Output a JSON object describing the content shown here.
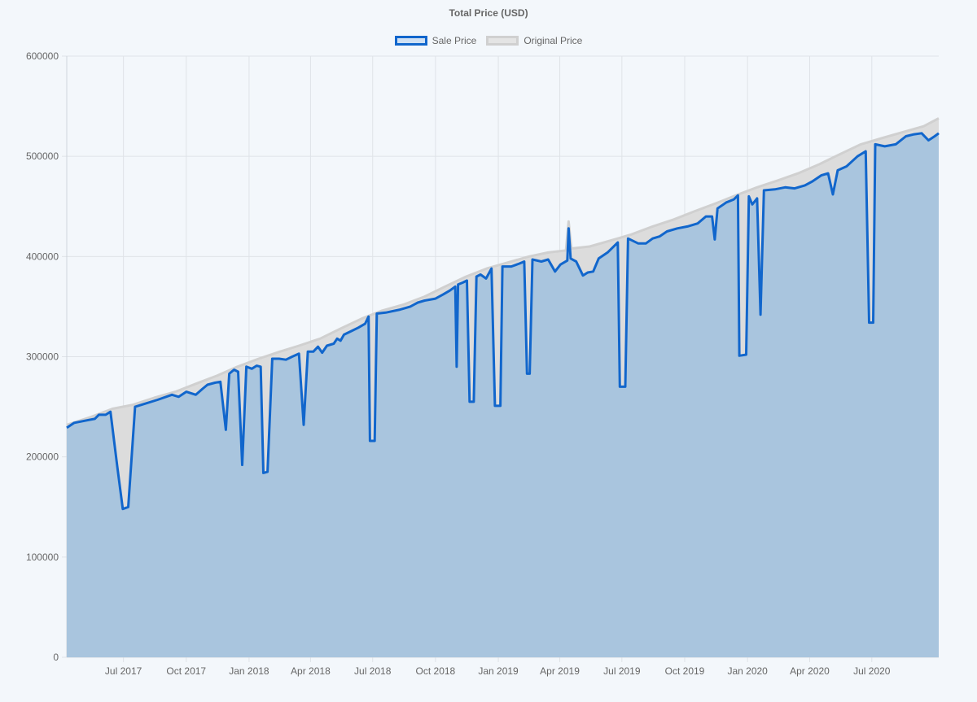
{
  "chart_data": {
    "type": "area",
    "title": "Total Price (USD)",
    "xlabel": "",
    "ylabel": "",
    "ylim": [
      0,
      600000
    ],
    "y_ticks": [
      0,
      100000,
      200000,
      300000,
      400000,
      500000,
      600000
    ],
    "x_range": [
      "2017-04-09",
      "2020-10-07"
    ],
    "x_ticks": [
      {
        "date": "2017-07-01",
        "label": "Jul 2017"
      },
      {
        "date": "2017-10-01",
        "label": "Oct 2017"
      },
      {
        "date": "2018-01-01",
        "label": "Jan 2018"
      },
      {
        "date": "2018-04-01",
        "label": "Apr 2018"
      },
      {
        "date": "2018-07-01",
        "label": "Jul 2018"
      },
      {
        "date": "2018-10-01",
        "label": "Oct 2018"
      },
      {
        "date": "2019-01-01",
        "label": "Jan 2019"
      },
      {
        "date": "2019-04-01",
        "label": "Apr 2019"
      },
      {
        "date": "2019-07-01",
        "label": "Jul 2019"
      },
      {
        "date": "2019-10-01",
        "label": "Oct 2019"
      },
      {
        "date": "2020-01-01",
        "label": "Jan 2020"
      },
      {
        "date": "2020-04-01",
        "label": "Apr 2020"
      },
      {
        "date": "2020-07-01",
        "label": "Jul 2020"
      }
    ],
    "grid": true,
    "legend_position": "top",
    "colors": {
      "sale_line": "#1166cc",
      "sale_fill": "#a9c5de",
      "original_line": "#d0d0d0",
      "original_fill": "#dcdcdc",
      "grid": "#dfe3e8"
    },
    "series": [
      {
        "name": "Sale Price",
        "points": [
          [
            "2017-04-09",
            229000
          ],
          [
            "2017-04-20",
            234000
          ],
          [
            "2017-05-05",
            236000
          ],
          [
            "2017-05-20",
            238000
          ],
          [
            "2017-05-26",
            242000
          ],
          [
            "2017-06-05",
            242000
          ],
          [
            "2017-06-12",
            245000
          ],
          [
            "2017-06-22",
            190000
          ],
          [
            "2017-06-30",
            148000
          ],
          [
            "2017-07-08",
            150000
          ],
          [
            "2017-07-18",
            250000
          ],
          [
            "2017-08-01",
            253000
          ],
          [
            "2017-08-20",
            257000
          ],
          [
            "2017-09-10",
            262000
          ],
          [
            "2017-09-20",
            260000
          ],
          [
            "2017-10-01",
            265000
          ],
          [
            "2017-10-15",
            262000
          ],
          [
            "2017-10-25",
            268000
          ],
          [
            "2017-11-01",
            272000
          ],
          [
            "2017-11-12",
            274000
          ],
          [
            "2017-11-20",
            275000
          ],
          [
            "2017-11-28",
            227000
          ],
          [
            "2017-12-03",
            283000
          ],
          [
            "2017-12-10",
            287000
          ],
          [
            "2017-12-16",
            285000
          ],
          [
            "2017-12-22",
            192000
          ],
          [
            "2017-12-28",
            290000
          ],
          [
            "2018-01-05",
            288000
          ],
          [
            "2018-01-12",
            291000
          ],
          [
            "2018-01-18",
            290000
          ],
          [
            "2018-01-22",
            184000
          ],
          [
            "2018-01-28",
            185000
          ],
          [
            "2018-02-04",
            298000
          ],
          [
            "2018-02-14",
            298000
          ],
          [
            "2018-02-24",
            297000
          ],
          [
            "2018-03-05",
            300000
          ],
          [
            "2018-03-15",
            303000
          ],
          [
            "2018-03-22",
            232000
          ],
          [
            "2018-03-28",
            305000
          ],
          [
            "2018-04-05",
            305000
          ],
          [
            "2018-04-12",
            310000
          ],
          [
            "2018-04-18",
            304000
          ],
          [
            "2018-04-25",
            311000
          ],
          [
            "2018-05-05",
            313000
          ],
          [
            "2018-05-10",
            318000
          ],
          [
            "2018-05-15",
            316000
          ],
          [
            "2018-05-20",
            322000
          ],
          [
            "2018-06-01",
            326000
          ],
          [
            "2018-06-10",
            329000
          ],
          [
            "2018-06-20",
            333000
          ],
          [
            "2018-06-25",
            340000
          ],
          [
            "2018-06-27",
            216000
          ],
          [
            "2018-07-04",
            216000
          ],
          [
            "2018-07-07",
            343000
          ],
          [
            "2018-07-20",
            344000
          ],
          [
            "2018-08-10",
            347000
          ],
          [
            "2018-08-25",
            350000
          ],
          [
            "2018-09-05",
            354000
          ],
          [
            "2018-09-15",
            356000
          ],
          [
            "2018-10-01",
            358000
          ],
          [
            "2018-10-12",
            362000
          ],
          [
            "2018-10-22",
            366000
          ],
          [
            "2018-10-30",
            370000
          ],
          [
            "2018-11-01",
            290000
          ],
          [
            "2018-11-03",
            372000
          ],
          [
            "2018-11-10",
            374000
          ],
          [
            "2018-11-16",
            376000
          ],
          [
            "2018-11-20",
            255000
          ],
          [
            "2018-11-26",
            255000
          ],
          [
            "2018-11-30",
            380000
          ],
          [
            "2018-12-06",
            382000
          ],
          [
            "2018-12-14",
            378000
          ],
          [
            "2018-12-22",
            388000
          ],
          [
            "2018-12-27",
            251000
          ],
          [
            "2019-01-04",
            251000
          ],
          [
            "2019-01-07",
            390000
          ],
          [
            "2019-01-20",
            390000
          ],
          [
            "2019-02-01",
            393000
          ],
          [
            "2019-02-08",
            395000
          ],
          [
            "2019-02-12",
            283000
          ],
          [
            "2019-02-16",
            283000
          ],
          [
            "2019-02-20",
            397000
          ],
          [
            "2019-03-05",
            395000
          ],
          [
            "2019-03-15",
            397000
          ],
          [
            "2019-03-25",
            385000
          ],
          [
            "2019-04-02",
            392000
          ],
          [
            "2019-04-12",
            396000
          ],
          [
            "2019-04-14",
            428000
          ],
          [
            "2019-04-17",
            398000
          ],
          [
            "2019-04-25",
            395000
          ],
          [
            "2019-05-05",
            381000
          ],
          [
            "2019-05-12",
            384000
          ],
          [
            "2019-05-20",
            385000
          ],
          [
            "2019-05-28",
            398000
          ],
          [
            "2019-06-10",
            404000
          ],
          [
            "2019-06-25",
            414000
          ],
          [
            "2019-06-28",
            270000
          ],
          [
            "2019-07-06",
            270000
          ],
          [
            "2019-07-10",
            418000
          ],
          [
            "2019-07-25",
            413000
          ],
          [
            "2019-08-05",
            413000
          ],
          [
            "2019-08-15",
            418000
          ],
          [
            "2019-08-25",
            420000
          ],
          [
            "2019-09-05",
            425000
          ],
          [
            "2019-09-20",
            428000
          ],
          [
            "2019-10-05",
            430000
          ],
          [
            "2019-10-20",
            433000
          ],
          [
            "2019-11-01",
            440000
          ],
          [
            "2019-11-10",
            440000
          ],
          [
            "2019-11-14",
            417000
          ],
          [
            "2019-11-18",
            448000
          ],
          [
            "2019-12-01",
            454000
          ],
          [
            "2019-12-12",
            457000
          ],
          [
            "2019-12-18",
            461000
          ],
          [
            "2019-12-20",
            301000
          ],
          [
            "2019-12-30",
            302000
          ],
          [
            "2020-01-03",
            460000
          ],
          [
            "2020-01-08",
            452000
          ],
          [
            "2020-01-15",
            458000
          ],
          [
            "2020-01-20",
            342000
          ],
          [
            "2020-01-25",
            466000
          ],
          [
            "2020-02-10",
            467000
          ],
          [
            "2020-02-25",
            469000
          ],
          [
            "2020-03-10",
            468000
          ],
          [
            "2020-03-25",
            471000
          ],
          [
            "2020-04-05",
            475000
          ],
          [
            "2020-04-18",
            481000
          ],
          [
            "2020-04-28",
            483000
          ],
          [
            "2020-05-05",
            462000
          ],
          [
            "2020-05-12",
            486000
          ],
          [
            "2020-05-25",
            490000
          ],
          [
            "2020-06-10",
            500000
          ],
          [
            "2020-06-22",
            505000
          ],
          [
            "2020-06-27",
            334000
          ],
          [
            "2020-07-03",
            334000
          ],
          [
            "2020-07-06",
            512000
          ],
          [
            "2020-07-20",
            510000
          ],
          [
            "2020-08-05",
            512000
          ],
          [
            "2020-08-20",
            520000
          ],
          [
            "2020-09-01",
            522000
          ],
          [
            "2020-09-12",
            523000
          ],
          [
            "2020-09-22",
            516000
          ],
          [
            "2020-10-01",
            520000
          ],
          [
            "2020-10-07",
            523000
          ]
        ]
      },
      {
        "name": "Original Price",
        "points": [
          [
            "2017-04-09",
            232000
          ],
          [
            "2017-05-15",
            240000
          ],
          [
            "2017-06-15",
            248000
          ],
          [
            "2017-07-15",
            252000
          ],
          [
            "2017-08-15",
            259000
          ],
          [
            "2017-09-15",
            265000
          ],
          [
            "2017-10-15",
            273000
          ],
          [
            "2017-11-15",
            281000
          ],
          [
            "2017-12-15",
            290000
          ],
          [
            "2018-01-15",
            298000
          ],
          [
            "2018-02-15",
            305000
          ],
          [
            "2018-03-15",
            311000
          ],
          [
            "2018-04-15",
            318000
          ],
          [
            "2018-05-15",
            328000
          ],
          [
            "2018-06-15",
            338000
          ],
          [
            "2018-07-15",
            346000
          ],
          [
            "2018-08-15",
            352000
          ],
          [
            "2018-09-15",
            360000
          ],
          [
            "2018-10-15",
            370000
          ],
          [
            "2018-11-15",
            380000
          ],
          [
            "2018-12-15",
            388000
          ],
          [
            "2019-01-15",
            394000
          ],
          [
            "2019-02-15",
            400000
          ],
          [
            "2019-03-15",
            404000
          ],
          [
            "2019-04-10",
            406000
          ],
          [
            "2019-04-14",
            435000
          ],
          [
            "2019-04-18",
            408000
          ],
          [
            "2019-05-15",
            410000
          ],
          [
            "2019-06-15",
            416000
          ],
          [
            "2019-07-15",
            422000
          ],
          [
            "2019-08-15",
            430000
          ],
          [
            "2019-09-15",
            437000
          ],
          [
            "2019-10-15",
            445000
          ],
          [
            "2019-11-15",
            453000
          ],
          [
            "2019-12-15",
            461000
          ],
          [
            "2020-01-15",
            469000
          ],
          [
            "2020-02-15",
            476000
          ],
          [
            "2020-03-15",
            483000
          ],
          [
            "2020-04-15",
            492000
          ],
          [
            "2020-05-15",
            502000
          ],
          [
            "2020-06-15",
            512000
          ],
          [
            "2020-07-15",
            518000
          ],
          [
            "2020-08-15",
            524000
          ],
          [
            "2020-09-15",
            530000
          ],
          [
            "2020-10-07",
            538000
          ]
        ]
      }
    ]
  }
}
